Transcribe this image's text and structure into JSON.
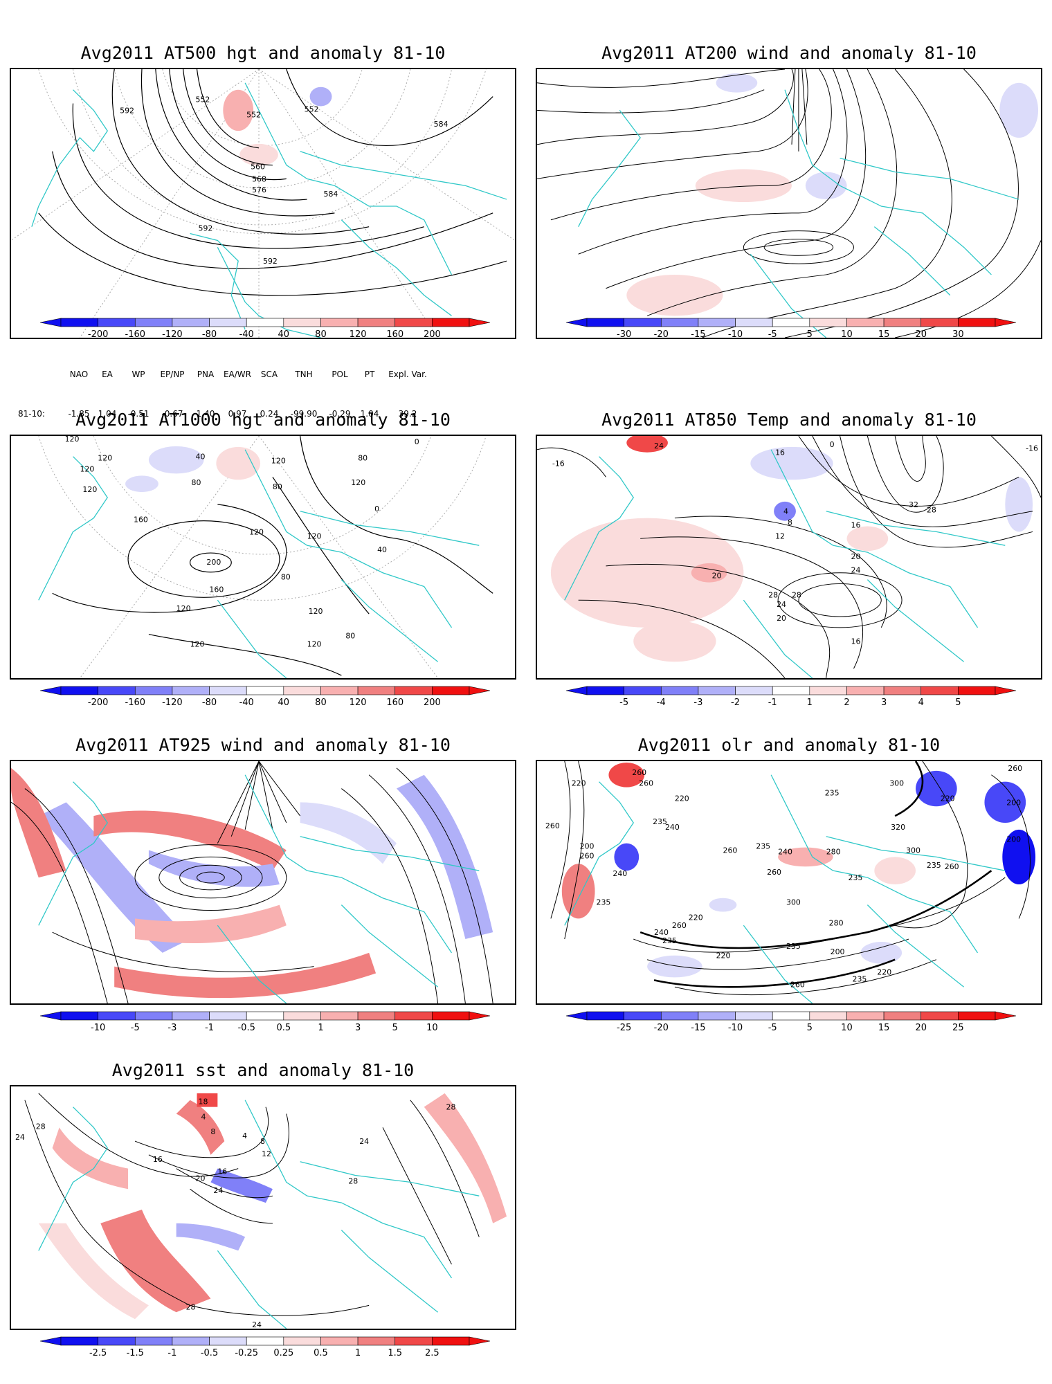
{
  "panels": [
    {
      "id": "p500",
      "title": "Avg2011 AT500 hgt and anomaly 81-10",
      "contour_labels": [
        "552",
        "552",
        "552",
        "592",
        "584",
        "560",
        "568",
        "576",
        "584",
        "592",
        "592"
      ],
      "colorbar": {
        "labels": [
          "-200",
          "-160",
          "-120",
          "-80",
          "-40",
          "40",
          "80",
          "120",
          "160",
          "200"
        ]
      }
    },
    {
      "id": "p200",
      "title": "Avg2011 AT200 wind and anomaly 81-10",
      "contour_labels": [],
      "colorbar": {
        "labels": [
          "-30",
          "-20",
          "-15",
          "-10",
          "-5",
          "5",
          "10",
          "15",
          "20",
          "30"
        ]
      }
    },
    {
      "id": "p1000",
      "title": "Avg2011 AT1000 hgt and anomaly 81-10",
      "contour_labels": [
        "120",
        "120",
        "120",
        "120",
        "40",
        "80",
        "120",
        "80",
        "80",
        "0",
        "160",
        "200",
        "160",
        "120",
        "120",
        "80",
        "120",
        "40",
        "0",
        "120",
        "120",
        "80",
        "120",
        "120"
      ],
      "colorbar": {
        "labels": [
          "-200",
          "-160",
          "-120",
          "-80",
          "-40",
          "40",
          "80",
          "120",
          "160",
          "200"
        ]
      }
    },
    {
      "id": "p850",
      "title": "Avg2011 AT850 Temp and anomaly 81-10",
      "contour_labels": [
        "24",
        "-16",
        "16",
        "0",
        "4",
        "8",
        "12",
        "16",
        "20",
        "24",
        "28",
        "32",
        "20",
        "28",
        "28",
        "24",
        "20",
        "16",
        "-16"
      ],
      "colorbar": {
        "labels": [
          "-5",
          "-4",
          "-3",
          "-2",
          "-1",
          "1",
          "2",
          "3",
          "4",
          "5"
        ]
      }
    },
    {
      "id": "p925",
      "title": "Avg2011 AT925 wind and anomaly 81-10",
      "contour_labels": [],
      "colorbar": {
        "labels": [
          "-10",
          "-5",
          "-3",
          "-1",
          "-0.5",
          "0.5",
          "1",
          "3",
          "5",
          "10"
        ]
      }
    },
    {
      "id": "polr",
      "title": "Avg2011 olr and anomaly 81-10",
      "contour_labels": [
        "260",
        "220",
        "260",
        "220",
        "240",
        "235",
        "235",
        "300",
        "220",
        "260",
        "260",
        "235",
        "240",
        "200",
        "240",
        "235",
        "260",
        "280",
        "320",
        "200",
        "260",
        "260",
        "235",
        "300",
        "260",
        "200",
        "220",
        "235",
        "240",
        "260",
        "300",
        "280",
        "235",
        "235",
        "220",
        "200",
        "220",
        "235",
        "260"
      ],
      "colorbar": {
        "labels": [
          "-25",
          "-20",
          "-15",
          "-10",
          "-5",
          "5",
          "10",
          "15",
          "20",
          "25"
        ]
      }
    },
    {
      "id": "psst",
      "title": "Avg2011 sst and anomaly 81-10",
      "contour_labels": [
        "28",
        "24",
        "18",
        "4",
        "8",
        "4",
        "8",
        "12",
        "16",
        "16",
        "20",
        "24",
        "28",
        "24",
        "28",
        "28",
        "24"
      ],
      "colorbar": {
        "labels": [
          "-2.5",
          "-1.5",
          "-1",
          "-0.5",
          "-0.25",
          "0.25",
          "0.5",
          "1",
          "1.5",
          "2.5"
        ]
      }
    }
  ],
  "indices": {
    "headers": [
      "NAO",
      "EA",
      "WP",
      "EP/NP",
      "PNA",
      "EA/WR",
      "SCA",
      "TNH",
      "POL",
      "PT",
      "Expl. Var."
    ],
    "row_label": "81-10:",
    "values": [
      "-1.85",
      "1.04",
      "-0.51",
      "-0.67",
      "1.40",
      "0.97",
      "0.24",
      "-99.90",
      "-0.29",
      "1.04",
      "39.2"
    ]
  },
  "colors": {
    "coast": "#30c8c8",
    "neg": [
      "#1010f0",
      "#4848f8",
      "#8080f8",
      "#b0b0f8",
      "#dcdcfa"
    ],
    "pos": [
      "#fadcdc",
      "#f8b0b0",
      "#f08080",
      "#f04848",
      "#f01010"
    ]
  }
}
